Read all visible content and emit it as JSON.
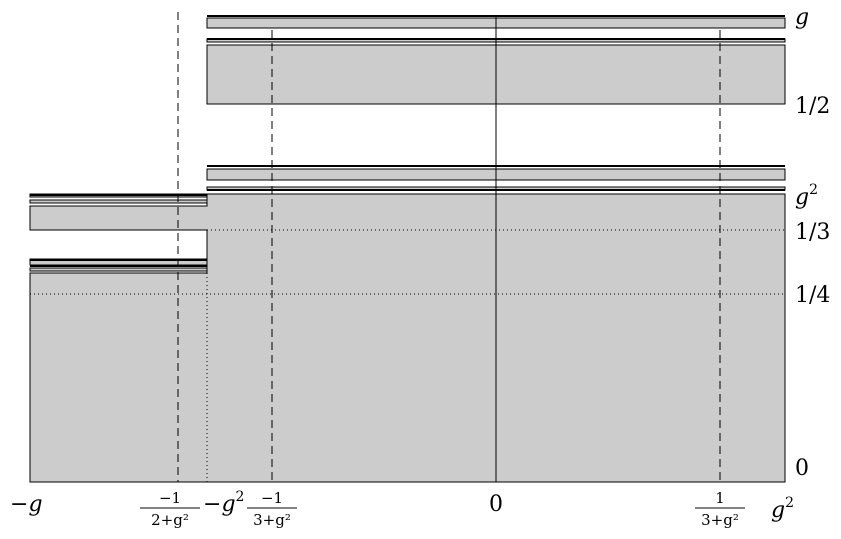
{
  "x_labels": {
    "neg_g": {
      "sign": "−",
      "var": "g"
    },
    "frac_neg_2_g2": {
      "num": "−1",
      "den": "2+g²"
    },
    "neg_g2": {
      "sign": "−",
      "var": "g",
      "exp": "2"
    },
    "frac_neg_3_g2": {
      "num": "−1",
      "den": "3+g²"
    },
    "zero": "0",
    "frac_pos_3_g2": {
      "num": "1",
      "den": "3+g²"
    },
    "g2": {
      "var": "g",
      "exp": "2"
    }
  },
  "y_labels": {
    "g": "g",
    "half": "1/2",
    "g2": {
      "var": "g",
      "exp": "2"
    },
    "third": "1/3",
    "quarter": "1/4",
    "zero": "0"
  },
  "colors": {
    "fill": "#cccccc",
    "stroke": "#000000"
  }
}
